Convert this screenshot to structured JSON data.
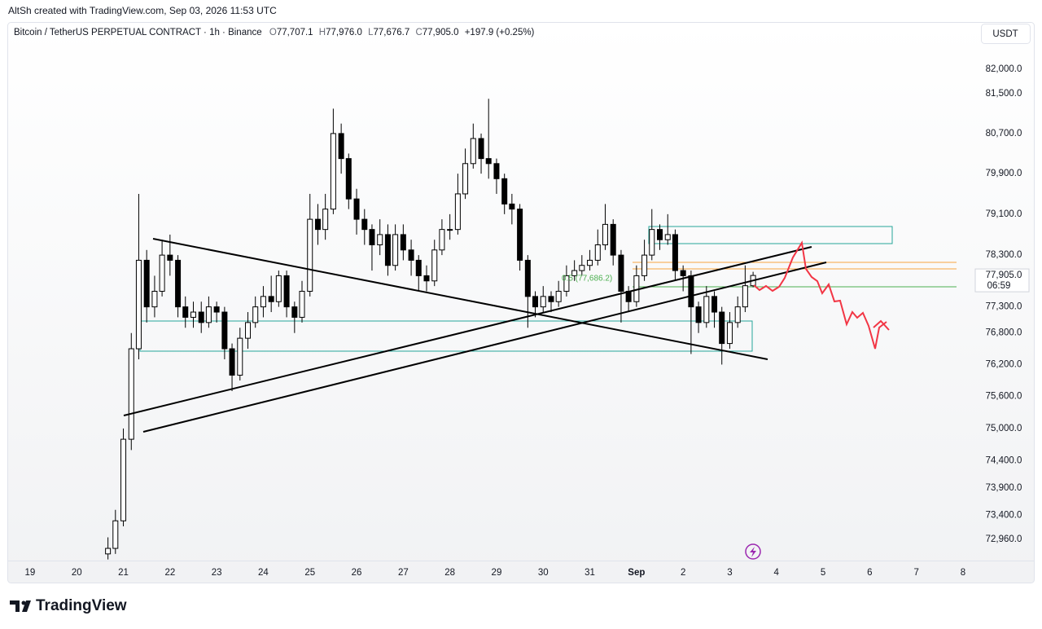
{
  "header": {
    "attribution": "AltSh created with TradingView.com, Sep 03, 2026 11:53 UTC",
    "symbol": "Bitcoin / TetherUS PERPETUAL CONTRACT · 1h · Binance",
    "ohlc": [
      {
        "key": "O",
        "value": "77,707.1"
      },
      {
        "key": "H",
        "value": "77,976.0"
      },
      {
        "key": "L",
        "value": "77,676.7"
      },
      {
        "key": "C",
        "value": "77,905.0"
      }
    ],
    "change": "+197.9 (+0.25%)",
    "currency": "USDT"
  },
  "footer": {
    "brand": "TradingView"
  },
  "chart_data": {
    "type": "candlestick",
    "log_scale": true,
    "grid": false,
    "up_color": "#ffffff",
    "down_color": "#000000",
    "wick_color": "#000000",
    "xlim": [
      18.53,
      39.21
    ],
    "xticks": [
      19,
      20,
      21,
      22,
      23,
      24,
      25,
      26,
      27,
      28,
      29,
      30,
      31,
      {
        "value": 32,
        "label": "Sep"
      },
      {
        "value": 33,
        "label": "2"
      },
      {
        "value": 34,
        "label": "3"
      },
      {
        "value": 35,
        "label": "4"
      },
      {
        "value": 36,
        "label": "5"
      },
      {
        "value": 37,
        "label": "6"
      },
      {
        "value": 38,
        "label": "7"
      },
      {
        "value": 39,
        "label": "8"
      }
    ],
    "ylim": [
      72580,
      82950
    ],
    "yticks": [
      {
        "value": 82000,
        "label": "82,000.0"
      },
      {
        "value": 81500,
        "label": "81,500.0"
      },
      {
        "value": 80700,
        "label": "80,700.0"
      },
      {
        "value": 79900,
        "label": "79,900.0"
      },
      {
        "value": 79100,
        "label": "79,100.0"
      },
      {
        "value": 78300,
        "label": "78,300.0"
      },
      {
        "value": 77300,
        "label": "77,300.0"
      },
      {
        "value": 76800,
        "label": "76,800.0"
      },
      {
        "value": 76200,
        "label": "76,200.0"
      },
      {
        "value": 75600,
        "label": "75,600.0"
      },
      {
        "value": 75000,
        "label": "75,000.0"
      },
      {
        "value": 74400,
        "label": "74,400.0"
      },
      {
        "value": 73900,
        "label": "73,900.0"
      },
      {
        "value": 73400,
        "label": "73,400.0"
      },
      {
        "value": 72960,
        "label": "72,960.0"
      }
    ],
    "last_price": {
      "value": 77905,
      "label": "77,905.0"
    },
    "countdown": "06:59",
    "fib_label": "0.5 (77,686.2)",
    "x": [
      20.67,
      20.83,
      21,
      21.17,
      21.33,
      21.5,
      21.67,
      21.83,
      22,
      22.17,
      22.33,
      22.5,
      22.67,
      22.83,
      23,
      23.17,
      23.33,
      23.5,
      23.67,
      23.83,
      24,
      24.17,
      24.33,
      24.5,
      24.67,
      24.83,
      25,
      25.17,
      25.33,
      25.5,
      25.67,
      25.83,
      26,
      26.17,
      26.33,
      26.5,
      26.67,
      26.83,
      27,
      27.17,
      27.33,
      27.5,
      27.67,
      27.83,
      28,
      28.17,
      28.33,
      28.5,
      28.67,
      28.83,
      29,
      29.17,
      29.33,
      29.5,
      29.67,
      29.83,
      30,
      30.17,
      30.33,
      30.5,
      30.67,
      30.83,
      31,
      31.17,
      31.33,
      31.5,
      31.67,
      31.83,
      32,
      32.17,
      32.33,
      32.5,
      32.67,
      32.83,
      33,
      33.17,
      33.33,
      33.5,
      33.67,
      33.83,
      34,
      34.17,
      34.33,
      34.5
    ],
    "open": [
      72700,
      72800,
      73300,
      74800,
      76500,
      78200,
      77300,
      77600,
      78300,
      78200,
      77300,
      77100,
      77200,
      77000,
      77300,
      77200,
      76500,
      76000,
      76700,
      77000,
      77300,
      77500,
      77400,
      77900,
      77300,
      77100,
      77600,
      79000,
      78800,
      79200,
      80700,
      80200,
      79400,
      79000,
      78800,
      78500,
      78700,
      78100,
      78700,
      78400,
      78200,
      77900,
      77800,
      78400,
      78800,
      78800,
      79500,
      80100,
      80600,
      80200,
      80100,
      79800,
      79300,
      79200,
      78200,
      77500,
      77300,
      77500,
      77400,
      77600,
      77900,
      78000,
      78100,
      78200,
      78500,
      78900,
      78300,
      77600,
      77400,
      77900,
      78300,
      78800,
      78600,
      78700,
      78000,
      77900,
      77300,
      77000,
      77500,
      77200,
      76600,
      77000,
      77300,
      77707.1
    ],
    "high": [
      73000,
      73500,
      75000,
      76800,
      79500,
      78400,
      77900,
      78600,
      78700,
      78300,
      77500,
      77400,
      77400,
      77500,
      77400,
      77300,
      76600,
      76900,
      77200,
      77500,
      77700,
      77900,
      78000,
      78000,
      77400,
      77800,
      79500,
      79300,
      79500,
      81200,
      80900,
      80300,
      79600,
      79200,
      78900,
      79000,
      78900,
      78900,
      78900,
      78600,
      78300,
      78100,
      78600,
      79000,
      79100,
      79900,
      80400,
      80900,
      80700,
      81400,
      80200,
      79900,
      79500,
      79300,
      78300,
      77600,
      77700,
      77600,
      77800,
      78100,
      78200,
      78300,
      78400,
      78800,
      79300,
      79000,
      78400,
      77700,
      78100,
      78600,
      79200,
      78900,
      79100,
      78800,
      78100,
      78000,
      77400,
      77700,
      77600,
      77300,
      77200,
      77500,
      78100,
      77976
    ],
    "low": [
      72600,
      72700,
      73200,
      74600,
      76300,
      77000,
      77100,
      77500,
      77900,
      77100,
      76900,
      76900,
      76800,
      76900,
      77000,
      76300,
      75700,
      75900,
      76500,
      76900,
      77100,
      77200,
      77300,
      77100,
      76800,
      77000,
      77500,
      78500,
      78600,
      79100,
      79900,
      79200,
      78700,
      78500,
      78000,
      78300,
      77900,
      78000,
      78200,
      77900,
      77600,
      77600,
      77700,
      78300,
      78600,
      78700,
      79400,
      80000,
      79900,
      79800,
      79500,
      79100,
      78900,
      78000,
      76900,
      77100,
      77200,
      77200,
      77300,
      77500,
      77800,
      77900,
      78000,
      78100,
      78400,
      78100,
      77000,
      77200,
      77300,
      77800,
      78200,
      78400,
      78500,
      77800,
      77600,
      76400,
      76800,
      76900,
      76900,
      76200,
      76500,
      76900,
      77200,
      77676.7
    ],
    "close": [
      72800,
      73300,
      74800,
      76500,
      78200,
      77300,
      77600,
      78300,
      78200,
      77300,
      77100,
      77200,
      77000,
      77300,
      77200,
      76500,
      76000,
      76700,
      77000,
      77300,
      77500,
      77400,
      77900,
      77300,
      77100,
      77600,
      79000,
      78800,
      79200,
      80700,
      80200,
      79400,
      79000,
      78800,
      78500,
      78700,
      78100,
      78700,
      78400,
      78200,
      77900,
      77800,
      78400,
      78800,
      78800,
      79500,
      80100,
      80600,
      80200,
      80100,
      79800,
      79300,
      79200,
      78200,
      77500,
      77300,
      77500,
      77400,
      77600,
      77900,
      78000,
      78100,
      78200,
      78500,
      78900,
      78300,
      77600,
      77400,
      77900,
      78300,
      78800,
      78600,
      78700,
      78000,
      77900,
      77300,
      77000,
      77500,
      77200,
      76600,
      77000,
      77300,
      77707.1,
      77905
    ]
  }
}
